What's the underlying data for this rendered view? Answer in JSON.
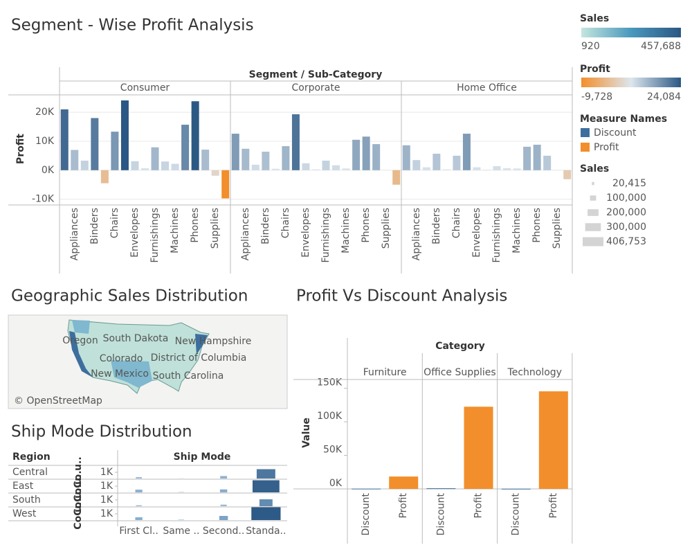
{
  "chart_data": [
    {
      "type": "bar",
      "title": "Segment - Wise Profit Analysis",
      "header": "Segment / Sub-Category",
      "ylabel": "Profit",
      "categories": [
        null,
        "Appliances",
        null,
        "Binders",
        null,
        "Chairs",
        null,
        "Envelopes",
        null,
        "Furnishings",
        null,
        "Machines",
        null,
        "Phones",
        null,
        "Supplies",
        null
      ],
      "panels": [
        {
          "name": "Consumer",
          "values": [
            21000,
            7000,
            3300,
            18000,
            -4500,
            13300,
            24084,
            3100,
            700,
            7900,
            3000,
            2200,
            15700,
            23800,
            7100,
            -1900,
            -9728
          ]
        },
        {
          "name": "Corporate",
          "values": [
            12600,
            7400,
            1900,
            6400,
            500,
            8300,
            19300,
            2400,
            300,
            3300,
            1700,
            600,
            10500,
            11600,
            9000,
            100,
            -5000
          ]
        },
        {
          "name": "Home Office",
          "values": [
            8600,
            3500,
            1000,
            5700,
            300,
            5000,
            12600,
            1000,
            200,
            1400,
            700,
            600,
            8100,
            8800,
            5000,
            100,
            -3100
          ]
        }
      ],
      "ylim": [
        -12000,
        26000
      ],
      "yticks": [
        {
          "value": -10000,
          "label": "-10K"
        },
        {
          "value": 0,
          "label": "0K"
        },
        {
          "value": 10000,
          "label": "10K"
        },
        {
          "value": 20000,
          "label": "20K"
        }
      ],
      "grid": true
    },
    {
      "type": "map",
      "title": "Geographic Sales Distribution",
      "labels": [
        "Oregon",
        "South Dakota",
        "New Hampshire",
        "Colorado",
        "District of Columbia",
        "New Mexico",
        "South Carolina"
      ],
      "attribution": "© OpenStreetMap"
    },
    {
      "type": "bar",
      "title": "Ship Mode Distribution",
      "row_header": "Region",
      "header": "Ship Mode",
      "axis_label": "Co u..",
      "categories": [
        "First Cl..",
        "Same ..",
        "Second..",
        "Standa.."
      ],
      "series": [
        {
          "name": "Central",
          "values": [
            300,
            120,
            460,
            1450
          ]
        },
        {
          "name": "East",
          "values": [
            490,
            150,
            530,
            1850
          ]
        },
        {
          "name": "South",
          "values": [
            240,
            80,
            330,
            1100
          ]
        },
        {
          "name": "West",
          "values": [
            510,
            170,
            700,
            1950
          ]
        }
      ],
      "ylim": [
        0,
        2000
      ],
      "yticks": [
        {
          "value": 1000,
          "label": "1K"
        }
      ],
      "color_range": [
        "#a9cde9",
        "#2a5783"
      ]
    },
    {
      "type": "bar",
      "title": "Profit Vs Discount Analysis",
      "header": "Category",
      "ylabel": "Value",
      "categories": [
        "Discount",
        "Profit"
      ],
      "panels": [
        {
          "name": "Furniture",
          "values": [
            368.89,
            18451.27
          ]
        },
        {
          "name": "Office Supplies",
          "values": [
            947.8,
            122490.8
          ]
        },
        {
          "name": "Technology",
          "values": [
            244.4,
            145454.95
          ]
        }
      ],
      "ylim": [
        0,
        160000
      ],
      "yticks": [
        {
          "value": 0,
          "label": "0K"
        },
        {
          "value": 50000,
          "label": "50K"
        },
        {
          "value": 100000,
          "label": "100K"
        },
        {
          "value": 150000,
          "label": "150K"
        }
      ]
    }
  ],
  "legends": {
    "sales_color": {
      "title": "Sales",
      "min": 920,
      "max": {
        "value": 457688,
        "label": "457,688"
      },
      "colors": [
        "#c4e6de",
        "#4a98bd",
        "#2a5783"
      ]
    },
    "profit_color": {
      "title": "Profit",
      "min": {
        "value": -9728,
        "label": "-9,728"
      },
      "max": {
        "value": 24084,
        "label": "24,084"
      },
      "colors": [
        "#f28e2b",
        "#dde6ee",
        "#2a5783"
      ]
    },
    "measure_names": {
      "title": "Measure Names",
      "items": [
        {
          "name": "Discount",
          "color": "#3d6e9e"
        },
        {
          "name": "Profit",
          "color": "#f28e2b"
        }
      ]
    },
    "sales_size": {
      "title": "Sales",
      "items": [
        {
          "value": 20415,
          "label": "20,415"
        },
        {
          "value": 100000,
          "label": "100,000"
        },
        {
          "value": 200000,
          "label": "200,000"
        },
        {
          "value": 300000,
          "label": "300,000"
        },
        {
          "value": 406753,
          "label": "406,753"
        }
      ]
    }
  }
}
